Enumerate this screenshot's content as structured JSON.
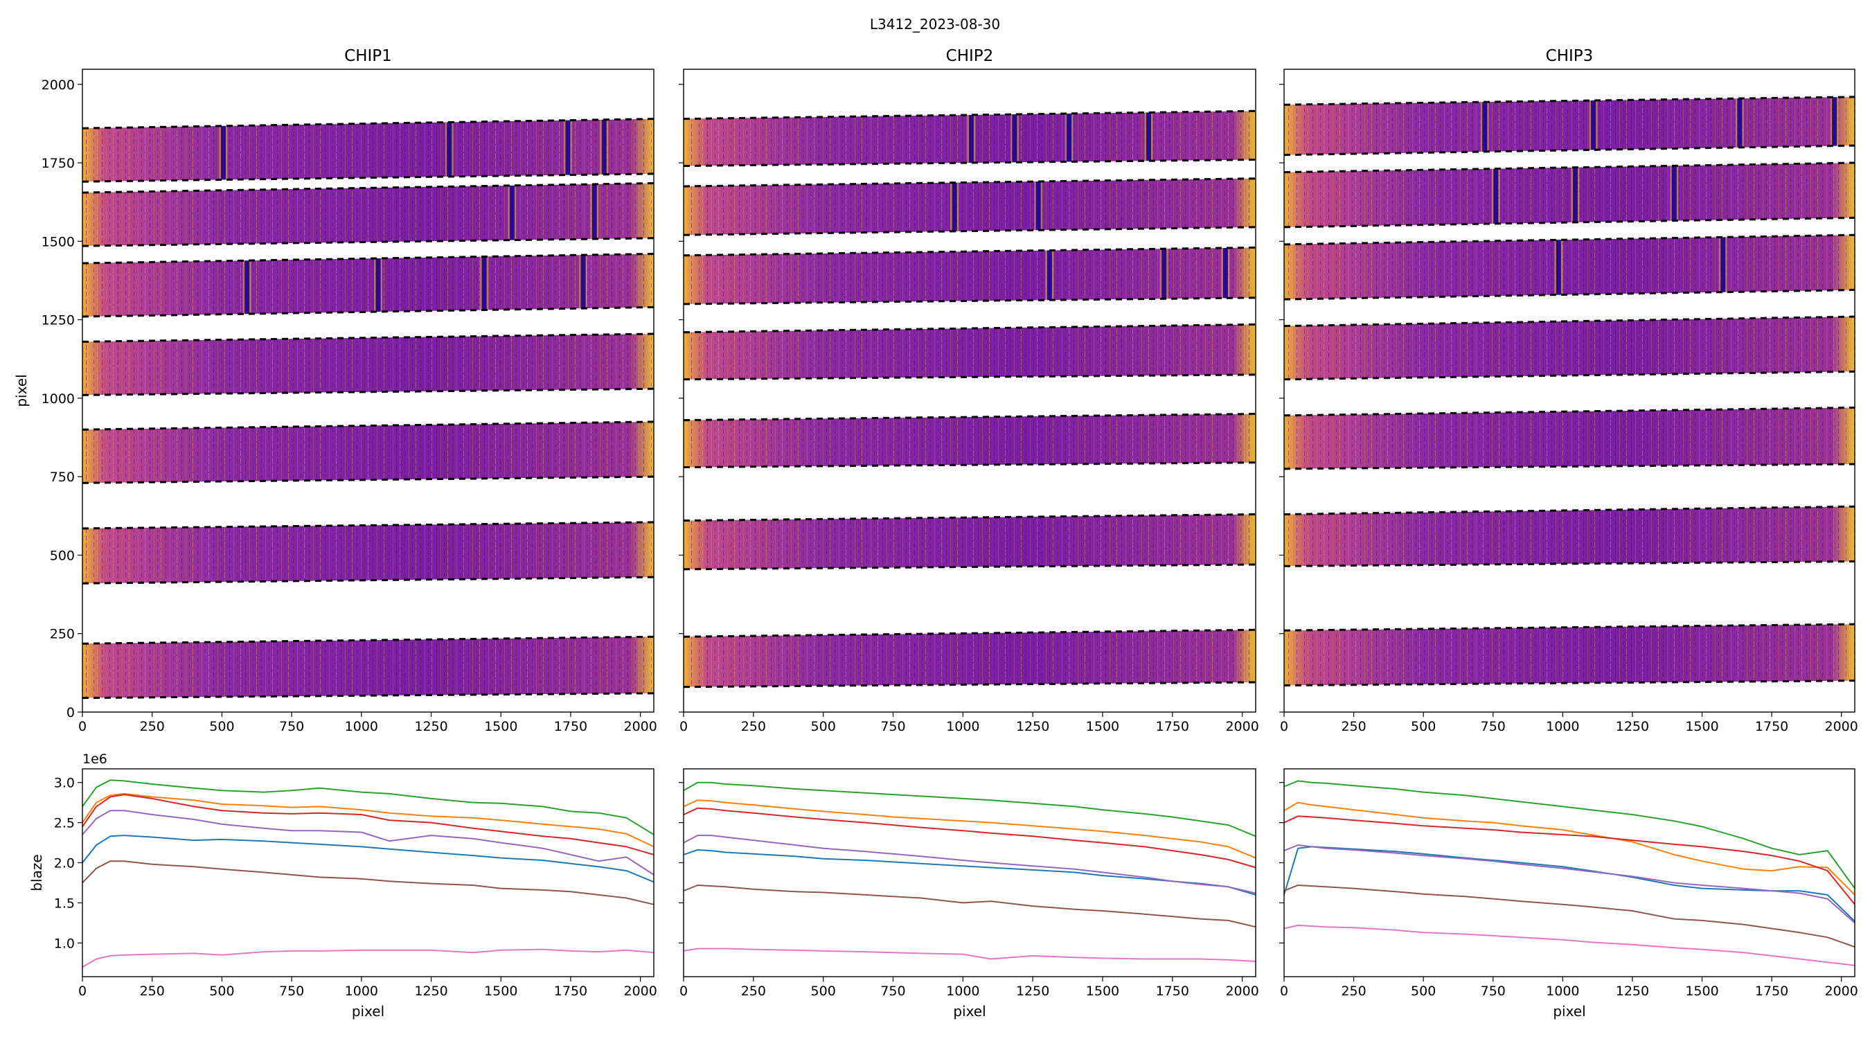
{
  "figure": {
    "suptitle": "L3412_2023-08-30"
  },
  "colors": {
    "series": [
      "#1f77b4",
      "#ff7f0e",
      "#2ca02c",
      "#d62728",
      "#9467bd",
      "#8c564b",
      "#e377c2"
    ],
    "plasma_dark": "#2a0a8c",
    "plasma_mid": "#8a2aa0",
    "plasma_bright": "#f0c020"
  },
  "chart_data": [
    {
      "type": "heatmap",
      "title": "CHIP1",
      "xlabel": "",
      "ylabel": "pixel",
      "xlim": [
        0,
        2048
      ],
      "ylim": [
        0,
        2048
      ],
      "xticks": [
        0,
        250,
        500,
        750,
        1000,
        1250,
        1500,
        1750,
        2000
      ],
      "yticks": [
        0,
        250,
        500,
        750,
        1000,
        1250,
        1500,
        1750,
        2000
      ],
      "colormap": "plasma",
      "orders": [
        {
          "y_bottom": [
            45,
            60
          ],
          "y_top": [
            218,
            240
          ]
        },
        {
          "y_bottom": [
            410,
            430
          ],
          "y_top": [
            585,
            605
          ]
        },
        {
          "y_bottom": [
            730,
            750
          ],
          "y_top": [
            900,
            925
          ]
        },
        {
          "y_bottom": [
            1010,
            1030
          ],
          "y_top": [
            1180,
            1205
          ]
        },
        {
          "y_bottom": [
            1260,
            1290
          ],
          "y_top": [
            1430,
            1460
          ]
        },
        {
          "y_bottom": [
            1485,
            1510
          ],
          "y_top": [
            1655,
            1685
          ]
        },
        {
          "y_bottom": [
            1690,
            1715
          ],
          "y_top": [
            1860,
            1890
          ]
        }
      ],
      "absorption_lines": [
        {
          "order": 6,
          "x": 505
        },
        {
          "order": 6,
          "x": 1315
        },
        {
          "order": 6,
          "x": 1740
        },
        {
          "order": 6,
          "x": 1870
        },
        {
          "order": 5,
          "x": 1540
        },
        {
          "order": 5,
          "x": 1835
        },
        {
          "order": 4,
          "x": 590
        },
        {
          "order": 4,
          "x": 1060
        },
        {
          "order": 4,
          "x": 1440
        },
        {
          "order": 4,
          "x": 1795
        }
      ]
    },
    {
      "type": "heatmap",
      "title": "CHIP2",
      "xlabel": "",
      "ylabel": "",
      "xlim": [
        0,
        2048
      ],
      "ylim": [
        0,
        2048
      ],
      "xticks": [
        0,
        250,
        500,
        750,
        1000,
        1250,
        1500,
        1750,
        2000
      ],
      "yticks": [
        0,
        250,
        500,
        750,
        1000,
        1250,
        1500,
        1750,
        2000
      ],
      "colormap": "plasma",
      "orders": [
        {
          "y_bottom": [
            80,
            95
          ],
          "y_top": [
            240,
            262
          ]
        },
        {
          "y_bottom": [
            455,
            470
          ],
          "y_top": [
            610,
            630
          ]
        },
        {
          "y_bottom": [
            780,
            795
          ],
          "y_top": [
            930,
            950
          ]
        },
        {
          "y_bottom": [
            1060,
            1075
          ],
          "y_top": [
            1210,
            1235
          ]
        },
        {
          "y_bottom": [
            1300,
            1320
          ],
          "y_top": [
            1455,
            1480
          ]
        },
        {
          "y_bottom": [
            1520,
            1545
          ],
          "y_top": [
            1675,
            1700
          ]
        },
        {
          "y_bottom": [
            1740,
            1760
          ],
          "y_top": [
            1890,
            1915
          ]
        }
      ],
      "absorption_lines": [
        {
          "order": 6,
          "x": 1030
        },
        {
          "order": 6,
          "x": 1185
        },
        {
          "order": 6,
          "x": 1380
        },
        {
          "order": 6,
          "x": 1665
        },
        {
          "order": 5,
          "x": 970
        },
        {
          "order": 5,
          "x": 1270
        },
        {
          "order": 4,
          "x": 1310
        },
        {
          "order": 4,
          "x": 1940
        },
        {
          "order": 4,
          "x": 1720
        }
      ]
    },
    {
      "type": "heatmap",
      "title": "CHIP3",
      "xlabel": "",
      "ylabel": "",
      "xlim": [
        0,
        2048
      ],
      "ylim": [
        0,
        2048
      ],
      "xticks": [
        0,
        250,
        500,
        750,
        1000,
        1250,
        1500,
        1750,
        2000
      ],
      "yticks": [
        0,
        250,
        500,
        750,
        1000,
        1250,
        1500,
        1750,
        2000
      ],
      "colormap": "plasma",
      "orders": [
        {
          "y_bottom": [
            85,
            100
          ],
          "y_top": [
            260,
            280
          ]
        },
        {
          "y_bottom": [
            465,
            480
          ],
          "y_top": [
            630,
            655
          ]
        },
        {
          "y_bottom": [
            775,
            790
          ],
          "y_top": [
            945,
            970
          ]
        },
        {
          "y_bottom": [
            1060,
            1085
          ],
          "y_top": [
            1230,
            1260
          ]
        },
        {
          "y_bottom": [
            1315,
            1345
          ],
          "y_top": [
            1490,
            1520
          ]
        },
        {
          "y_bottom": [
            1545,
            1575
          ],
          "y_top": [
            1720,
            1750
          ]
        },
        {
          "y_bottom": [
            1775,
            1805
          ],
          "y_top": [
            1935,
            1960
          ]
        }
      ],
      "absorption_lines": [
        {
          "order": 6,
          "x": 720
        },
        {
          "order": 6,
          "x": 1110
        },
        {
          "order": 6,
          "x": 1635
        },
        {
          "order": 6,
          "x": 1975
        },
        {
          "order": 5,
          "x": 760
        },
        {
          "order": 5,
          "x": 1045
        },
        {
          "order": 5,
          "x": 1400
        },
        {
          "order": 4,
          "x": 985
        },
        {
          "order": 4,
          "x": 1575
        }
      ]
    },
    {
      "type": "line",
      "title": "",
      "xlabel": "pixel",
      "ylabel": "blaze",
      "offset_label": "1e6",
      "xlim": [
        0,
        2048
      ],
      "ylim": [
        0.58,
        3.17
      ],
      "xticks": [
        0,
        250,
        500,
        750,
        1000,
        1250,
        1500,
        1750,
        2000
      ],
      "yticks": [
        1.0,
        1.5,
        2.0,
        2.5,
        3.0
      ],
      "x": [
        0,
        50,
        100,
        150,
        250,
        400,
        500,
        650,
        750,
        850,
        1000,
        1100,
        1250,
        1400,
        1500,
        1650,
        1750,
        1850,
        1950,
        2048
      ],
      "series": [
        {
          "values": [
            2.0,
            2.22,
            2.33,
            2.34,
            2.32,
            2.28,
            2.29,
            2.27,
            2.25,
            2.23,
            2.2,
            2.17,
            2.13,
            2.09,
            2.06,
            2.03,
            1.99,
            1.95,
            1.9,
            1.76
          ]
        },
        {
          "values": [
            2.5,
            2.75,
            2.84,
            2.86,
            2.82,
            2.78,
            2.73,
            2.71,
            2.69,
            2.7,
            2.66,
            2.62,
            2.58,
            2.56,
            2.53,
            2.48,
            2.45,
            2.42,
            2.36,
            2.2
          ]
        },
        {
          "values": [
            2.7,
            2.94,
            3.03,
            3.02,
            2.98,
            2.93,
            2.9,
            2.88,
            2.9,
            2.93,
            2.88,
            2.86,
            2.8,
            2.75,
            2.74,
            2.7,
            2.64,
            2.62,
            2.56,
            2.35
          ]
        },
        {
          "values": [
            2.45,
            2.7,
            2.82,
            2.85,
            2.8,
            2.7,
            2.65,
            2.62,
            2.61,
            2.62,
            2.6,
            2.53,
            2.5,
            2.43,
            2.39,
            2.33,
            2.3,
            2.25,
            2.2,
            2.1
          ]
        },
        {
          "values": [
            2.35,
            2.55,
            2.65,
            2.65,
            2.6,
            2.54,
            2.48,
            2.43,
            2.4,
            2.4,
            2.38,
            2.27,
            2.34,
            2.3,
            2.25,
            2.18,
            2.1,
            2.02,
            2.07,
            1.85
          ]
        },
        {
          "values": [
            1.75,
            1.93,
            2.02,
            2.02,
            1.98,
            1.95,
            1.92,
            1.88,
            1.85,
            1.82,
            1.8,
            1.77,
            1.74,
            1.72,
            1.68,
            1.66,
            1.64,
            1.6,
            1.56,
            1.48
          ]
        },
        {
          "values": [
            0.7,
            0.8,
            0.84,
            0.85,
            0.86,
            0.87,
            0.85,
            0.89,
            0.9,
            0.9,
            0.91,
            0.91,
            0.91,
            0.88,
            0.91,
            0.92,
            0.9,
            0.89,
            0.91,
            0.88
          ]
        }
      ]
    },
    {
      "type": "line",
      "title": "",
      "xlabel": "pixel",
      "ylabel": "",
      "xlim": [
        0,
        2048
      ],
      "ylim": [
        0.58,
        3.17
      ],
      "xticks": [
        0,
        250,
        500,
        750,
        1000,
        1250,
        1500,
        1750,
        2000
      ],
      "yticks": [
        1.0,
        1.5,
        2.0,
        2.5,
        3.0
      ],
      "x": [
        0,
        50,
        100,
        150,
        250,
        400,
        500,
        650,
        750,
        850,
        1000,
        1100,
        1250,
        1400,
        1500,
        1650,
        1750,
        1850,
        1950,
        2048
      ],
      "series": [
        {
          "values": [
            2.1,
            2.16,
            2.15,
            2.13,
            2.11,
            2.08,
            2.05,
            2.03,
            2.01,
            1.99,
            1.96,
            1.94,
            1.91,
            1.88,
            1.84,
            1.8,
            1.77,
            1.74,
            1.7,
            1.6
          ]
        },
        {
          "values": [
            2.7,
            2.78,
            2.77,
            2.75,
            2.72,
            2.67,
            2.64,
            2.6,
            2.57,
            2.55,
            2.52,
            2.5,
            2.46,
            2.42,
            2.39,
            2.34,
            2.3,
            2.26,
            2.2,
            2.06
          ]
        },
        {
          "values": [
            2.9,
            3.0,
            3.0,
            2.98,
            2.96,
            2.92,
            2.9,
            2.87,
            2.85,
            2.83,
            2.8,
            2.78,
            2.74,
            2.7,
            2.66,
            2.61,
            2.57,
            2.52,
            2.47,
            2.33
          ]
        },
        {
          "values": [
            2.6,
            2.68,
            2.67,
            2.65,
            2.62,
            2.57,
            2.54,
            2.5,
            2.47,
            2.44,
            2.4,
            2.37,
            2.33,
            2.28,
            2.25,
            2.2,
            2.15,
            2.1,
            2.04,
            1.94
          ]
        },
        {
          "values": [
            2.25,
            2.34,
            2.34,
            2.32,
            2.28,
            2.22,
            2.18,
            2.14,
            2.11,
            2.08,
            2.03,
            2.0,
            1.96,
            1.92,
            1.88,
            1.82,
            1.77,
            1.73,
            1.7,
            1.62
          ]
        },
        {
          "values": [
            1.65,
            1.72,
            1.71,
            1.7,
            1.67,
            1.64,
            1.63,
            1.6,
            1.58,
            1.56,
            1.5,
            1.52,
            1.46,
            1.42,
            1.4,
            1.36,
            1.33,
            1.3,
            1.28,
            1.2
          ]
        },
        {
          "values": [
            0.9,
            0.93,
            0.93,
            0.93,
            0.92,
            0.91,
            0.9,
            0.89,
            0.88,
            0.87,
            0.86,
            0.8,
            0.84,
            0.82,
            0.81,
            0.8,
            0.8,
            0.8,
            0.79,
            0.77
          ]
        }
      ]
    },
    {
      "type": "line",
      "title": "",
      "xlabel": "pixel",
      "ylabel": "",
      "xlim": [
        0,
        2048
      ],
      "ylim": [
        0.58,
        3.17
      ],
      "xticks": [
        0,
        250,
        500,
        750,
        1000,
        1250,
        1500,
        1750,
        2000
      ],
      "yticks": [
        1.0,
        1.5,
        2.0,
        2.5,
        3.0
      ],
      "x": [
        0,
        50,
        100,
        150,
        250,
        400,
        500,
        650,
        750,
        850,
        1000,
        1100,
        1250,
        1400,
        1500,
        1650,
        1750,
        1850,
        1950,
        2048
      ],
      "series": [
        {
          "values": [
            1.6,
            2.18,
            2.2,
            2.19,
            2.17,
            2.14,
            2.11,
            2.06,
            2.03,
            2.0,
            1.95,
            1.9,
            1.82,
            1.72,
            1.68,
            1.66,
            1.65,
            1.65,
            1.6,
            1.27
          ]
        },
        {
          "values": [
            2.65,
            2.75,
            2.72,
            2.7,
            2.66,
            2.6,
            2.56,
            2.52,
            2.5,
            2.46,
            2.41,
            2.35,
            2.26,
            2.1,
            2.02,
            1.92,
            1.9,
            1.95,
            1.94,
            1.6
          ]
        },
        {
          "values": [
            2.95,
            3.02,
            3.0,
            2.99,
            2.96,
            2.92,
            2.88,
            2.84,
            2.8,
            2.76,
            2.7,
            2.66,
            2.6,
            2.52,
            2.45,
            2.3,
            2.18,
            2.1,
            2.15,
            1.68
          ]
        },
        {
          "values": [
            2.5,
            2.58,
            2.57,
            2.56,
            2.53,
            2.49,
            2.46,
            2.43,
            2.41,
            2.38,
            2.35,
            2.33,
            2.28,
            2.23,
            2.2,
            2.14,
            2.09,
            2.02,
            1.9,
            1.48
          ]
        },
        {
          "values": [
            2.15,
            2.22,
            2.2,
            2.18,
            2.16,
            2.12,
            2.09,
            2.05,
            2.02,
            1.98,
            1.93,
            1.89,
            1.83,
            1.75,
            1.72,
            1.68,
            1.65,
            1.62,
            1.55,
            1.25
          ]
        },
        {
          "values": [
            1.65,
            1.72,
            1.71,
            1.7,
            1.68,
            1.64,
            1.61,
            1.58,
            1.55,
            1.52,
            1.48,
            1.45,
            1.4,
            1.3,
            1.28,
            1.23,
            1.18,
            1.13,
            1.07,
            0.95
          ]
        },
        {
          "values": [
            1.18,
            1.22,
            1.21,
            1.2,
            1.19,
            1.16,
            1.13,
            1.11,
            1.09,
            1.07,
            1.04,
            1.01,
            0.98,
            0.94,
            0.92,
            0.88,
            0.84,
            0.8,
            0.76,
            0.72
          ]
        }
      ]
    }
  ]
}
